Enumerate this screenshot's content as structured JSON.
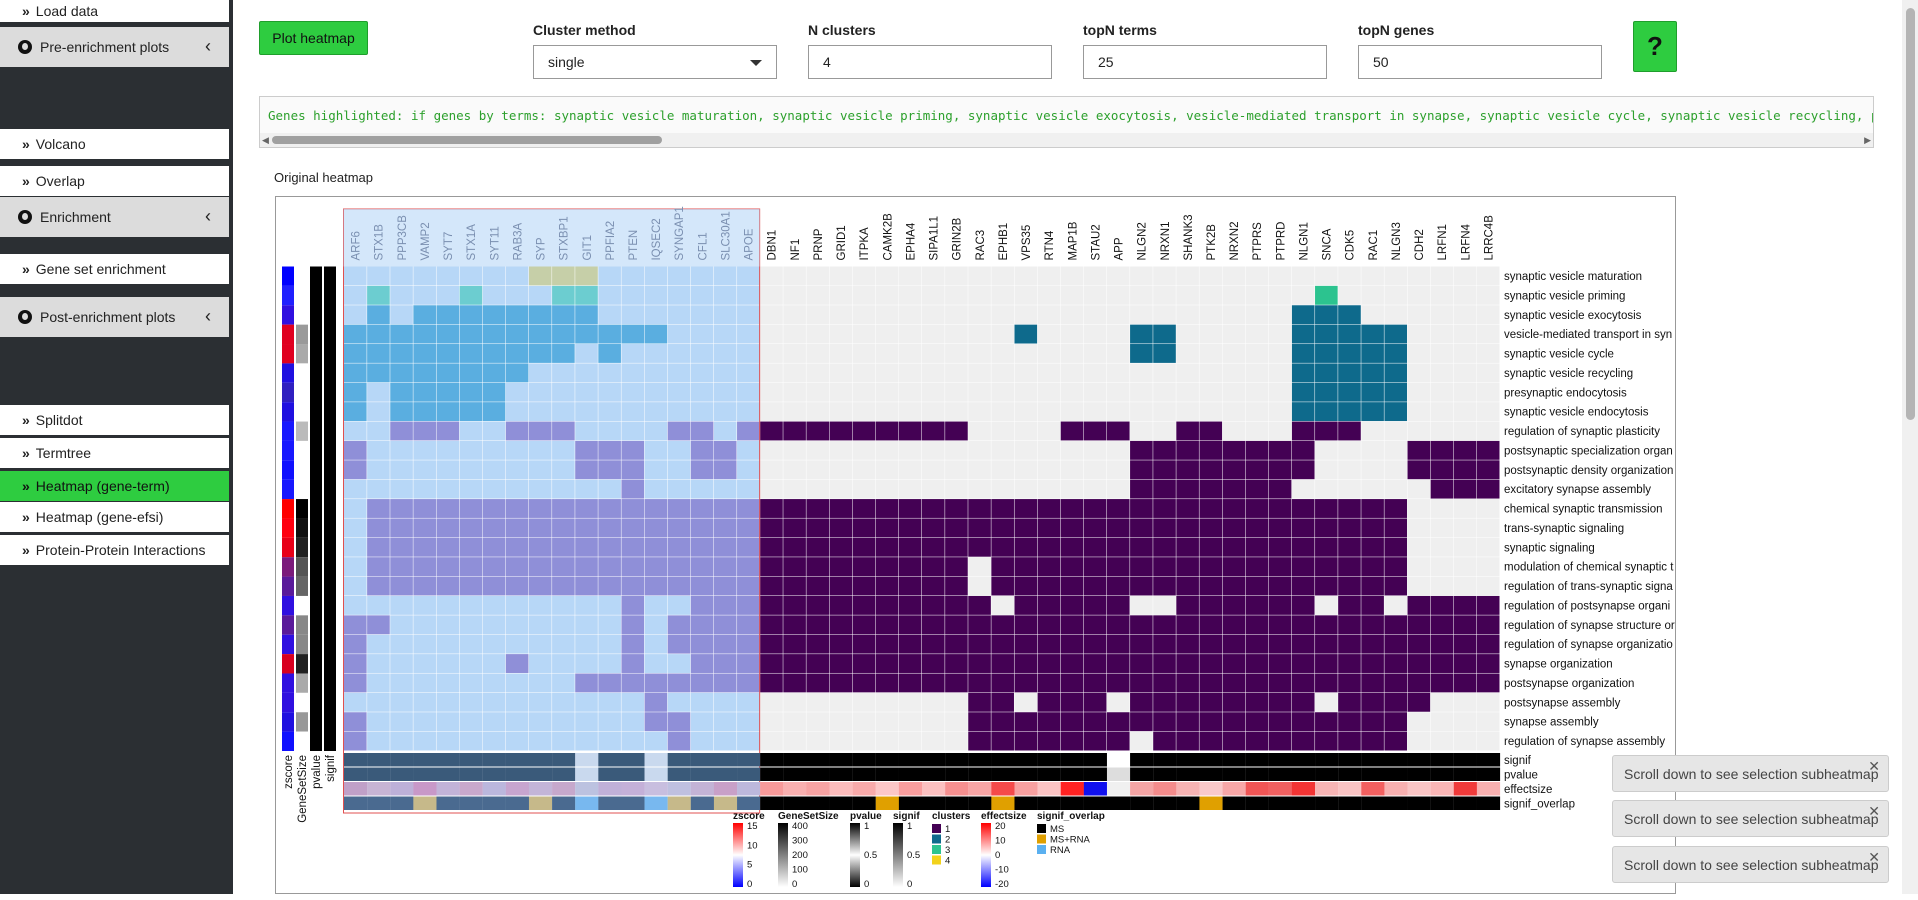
{
  "sidebar": {
    "items": [
      {
        "label": "Load data",
        "type": "item"
      },
      {
        "label": "Pre-enrichment plots",
        "type": "group"
      },
      {
        "label": "Volcano",
        "type": "item"
      },
      {
        "label": "Overlap",
        "type": "item"
      },
      {
        "label": "Enrichment",
        "type": "group"
      },
      {
        "label": "Gene set enrichment",
        "type": "item"
      },
      {
        "label": "Post-enrichment plots",
        "type": "group"
      },
      {
        "label": "Splitdot",
        "type": "item"
      },
      {
        "label": "Termtree",
        "type": "item"
      },
      {
        "label": "Heatmap (gene-term)",
        "type": "item",
        "active": true
      },
      {
        "label": "Heatmap (gene-efsi)",
        "type": "item"
      },
      {
        "label": "Protein-Protein Interactions",
        "type": "item"
      }
    ]
  },
  "toolbar": {
    "plot_label": "Plot heatmap",
    "cluster_method_label": "Cluster method",
    "cluster_method_value": "single",
    "n_clusters_label": "N clusters",
    "n_clusters_value": "4",
    "topn_terms_label": "topN terms",
    "topn_terms_value": "25",
    "topn_genes_label": "topN genes",
    "topn_genes_value": "50",
    "help_label": "?"
  },
  "genes_highlighted": "Genes highlighted: if genes by terms: synaptic vesicle maturation, synaptic vesicle priming, synaptic vesicle exocytosis, vesicle-mediated transport in synapse, synaptic vesicle cycle, synaptic vesicle recycling, presynaptic",
  "heatmap": {
    "title": "Original heatmap",
    "genes": [
      "ARF6",
      "STX1B",
      "PPP3CB",
      "VAMP2",
      "SYT7",
      "STX1A",
      "SYT11",
      "RAB3A",
      "SYP",
      "STXBP1",
      "GIT1",
      "PPFIA2",
      "PTEN",
      "IQSEC2",
      "SYNGAP1",
      "CFL1",
      "SLC30A1",
      "APOE",
      "DBN1",
      "NF1",
      "PRNP",
      "GRID1",
      "ITPKA",
      "CAMK2B",
      "EPHA4",
      "SIPA1L1",
      "GRIN2B",
      "RAC3",
      "EPHB1",
      "VPS35",
      "RTN4",
      "MAP1B",
      "STAU2",
      "APP",
      "NLGN2",
      "NRXN1",
      "SHANK3",
      "PTK2B",
      "NRXN2",
      "PTPRS",
      "PTPRD",
      "NLGN1",
      "SNCA",
      "CDK5",
      "RAC1",
      "NLGN3",
      "CDH2",
      "LRFN1",
      "LRFN4",
      "LRRC4B"
    ],
    "terms": [
      "synaptic vesicle maturation",
      "synaptic vesicle priming",
      "synaptic vesicle exocytosis",
      "vesicle-mediated transport in syn",
      "synaptic vesicle cycle",
      "synaptic vesicle recycling",
      "presynaptic endocytosis",
      "synaptic vesicle endocytosis",
      "regulation of synaptic plasticity",
      "postsynaptic specialization organ",
      "postsynaptic density organization",
      "excitatory synapse assembly",
      "chemical synaptic transmission",
      "trans-synaptic signaling",
      "synaptic signaling",
      "modulation of chemical synaptic t",
      "regulation of trans-synaptic signa",
      "regulation of postsynapse organi",
      "regulation of synapse structure or",
      "regulation of synapse organizatio",
      "synapse organization",
      "postsynapse organization",
      "postsynapse assembly",
      "synapse assembly",
      "regulation of synapse assembly"
    ],
    "left_annotations": [
      "zscore",
      "GeneSetSize",
      "pvalue",
      "signif"
    ],
    "bottom_annotations": [
      "signif",
      "pvalue",
      "effectsize",
      "signif_overlap"
    ],
    "legends": [
      {
        "title": "zscore",
        "labels": [
          "15",
          "10",
          "5",
          "0"
        ]
      },
      {
        "title": "GeneSetSize",
        "labels": [
          "400",
          "300",
          "200",
          "100",
          "0"
        ]
      },
      {
        "title": "pvalue",
        "labels": [
          "1",
          "0.5",
          "0"
        ]
      },
      {
        "title": "signif",
        "labels": [
          "1",
          "0.5",
          "0"
        ]
      },
      {
        "title": "clusters",
        "labels": [
          "1",
          "2",
          "3",
          "4"
        ]
      },
      {
        "title": "effectsize",
        "labels": [
          "20",
          "10",
          "0",
          "-10",
          "-20"
        ]
      },
      {
        "title": "signif_overlap",
        "labels": [
          "MS",
          "MS+RNA",
          "RNA"
        ]
      }
    ]
  },
  "toasts": [
    "Scroll down to see selection subheatmap",
    "Scroll down to see selection subheatmap",
    "Scroll down to see selection subheatmap"
  ],
  "colors": {
    "accent_green": "#2ecc40",
    "cluster1": "#440154",
    "cluster2": "#0e6a8c",
    "cluster3": "#2cc38f",
    "cluster4": "#f2d21b",
    "selection": "#b7d7f7"
  }
}
